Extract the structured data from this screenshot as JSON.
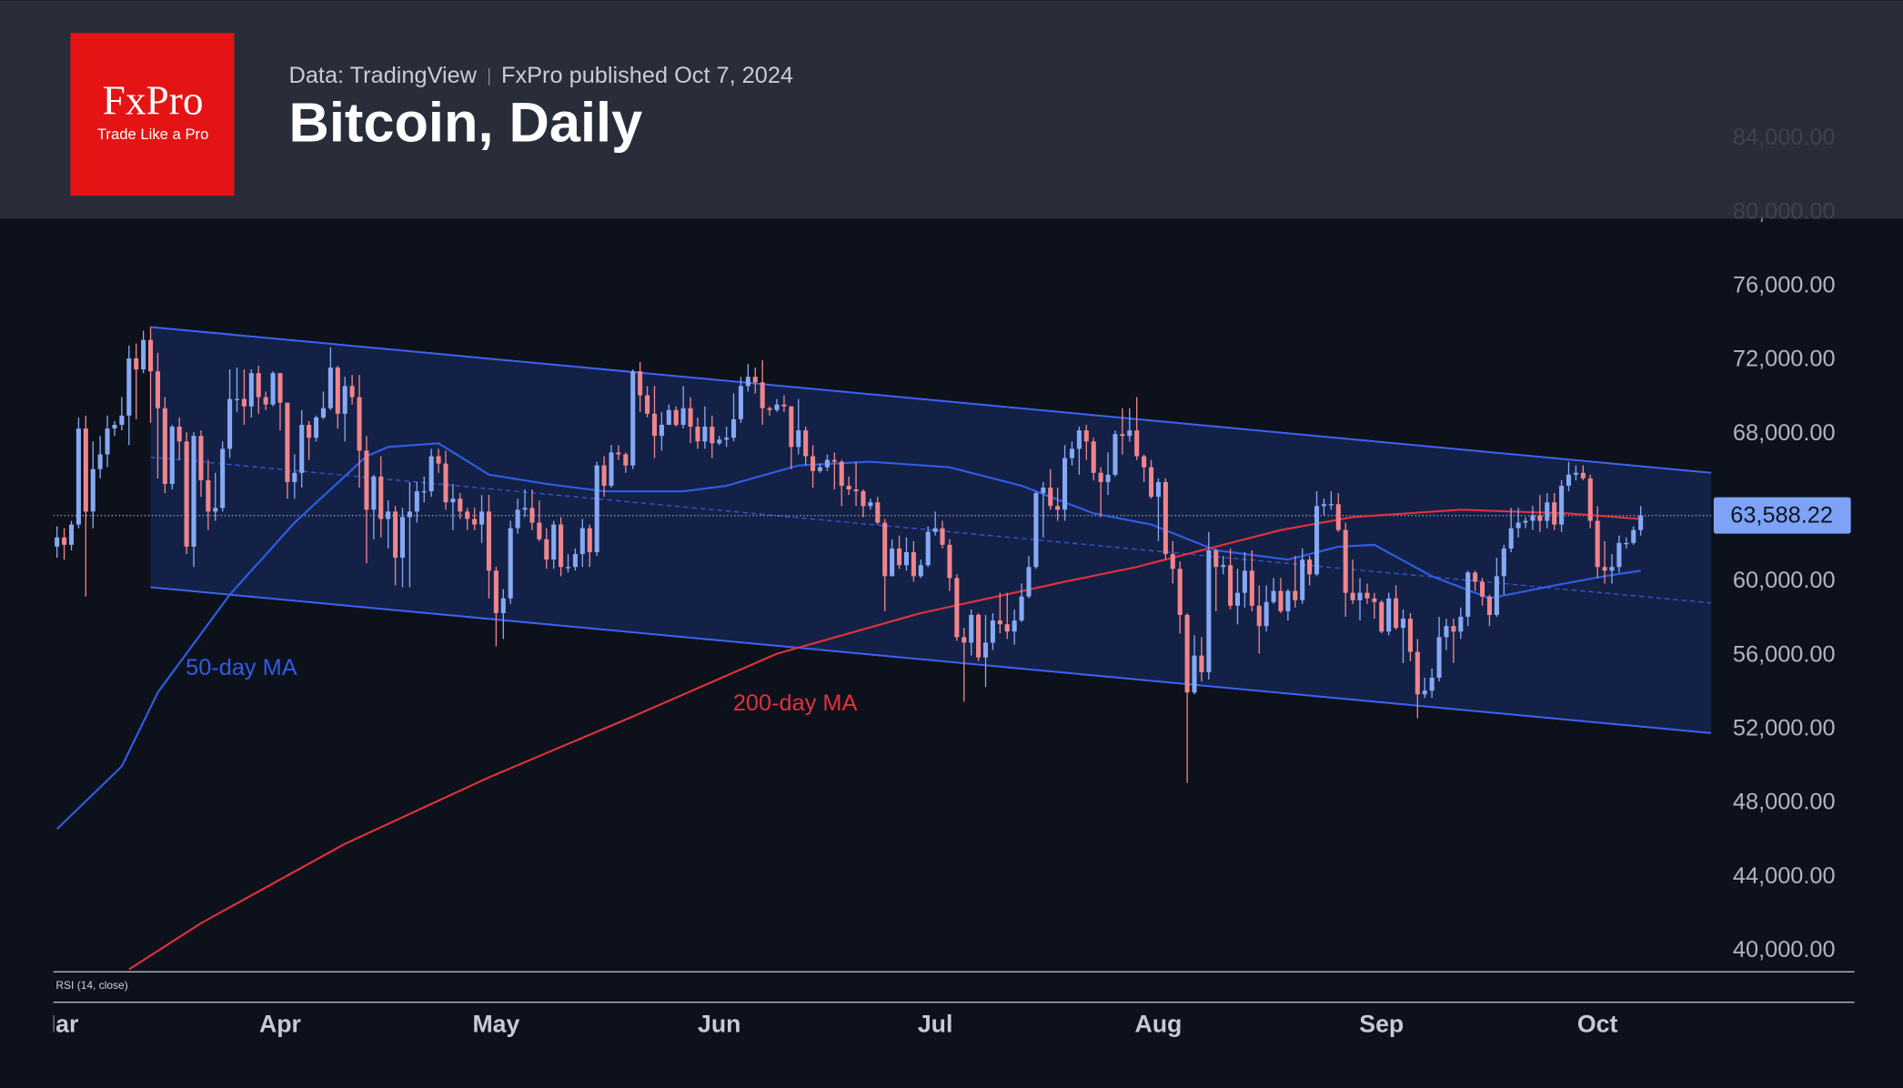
{
  "header": {
    "logo": "FxPro",
    "tagline": "Trade Like a Pro",
    "source": "Data: TradingView",
    "published": "FxPro published Oct 7, 2024"
  },
  "chart_data": {
    "type": "candlestick",
    "title": "Bitcoin, Daily",
    "open": [
      61900,
      62400,
      62000,
      63100,
      68300,
      63800,
      66100,
      66900,
      68300,
      68500,
      69000,
      72100,
      71500,
      73100,
      71400,
      69400,
      65300,
      68400,
      67600,
      61900,
      67900,
      65500,
      63800,
      64000,
      67200,
      69900,
      69900,
      69500,
      71300,
      70000,
      69600,
      71300,
      69700,
      65400,
      65900,
      68500,
      67800,
      68900,
      69400,
      71600,
      69100,
      70600,
      70000,
      67100,
      63900,
      65700,
      63400,
      63800,
      61300,
      63500,
      63800,
      64900,
      64900,
      66800,
      66400,
      64300,
      64500,
      63800,
      63400,
      63100,
      63800,
      60600,
      58300,
      59100,
      62900,
      63900,
      64000,
      63200,
      62300,
      61200,
      63100,
      60800,
      60800,
      61500,
      62900,
      61600,
      66300,
      65200,
      67000,
      66900,
      66300,
      71400,
      70100,
      69100,
      67900,
      68500,
      69300,
      68500,
      69400,
      68400,
      67600,
      68400,
      67500,
      67700,
      67800,
      68800,
      70600,
      71100,
      70800,
      69400,
      69300,
      69600,
      69500,
      67300,
      68200,
      66800,
      66000,
      66200,
      66600,
      66500,
      65200,
      65000,
      64900,
      64100,
      64300,
      63200,
      60300,
      61800,
      60900,
      61600,
      60300,
      60900,
      62700,
      62900,
      62000,
      60200,
      57000,
      56700,
      58200,
      55900,
      56700,
      57900,
      57700,
      57300,
      57900,
      59200,
      60800,
      64800,
      65100,
      64100,
      63900,
      66700,
      67200,
      68200,
      67600,
      65900,
      65400,
      65800,
      68000,
      67900,
      68200,
      66800,
      66200,
      64600,
      65400,
      61500,
      60700,
      58200,
      54000,
      56000,
      55100,
      61700,
      60800,
      60900,
      58700,
      59400,
      60600,
      58700,
      57600,
      58900,
      59500,
      58400,
      59500,
      59000,
      61200,
      60400,
      64100,
      64200,
      64200,
      62800,
      59400,
      59000,
      59400,
      59100,
      58900,
      57300,
      59100,
      57500,
      58000,
      56200,
      53900,
      54100,
      54800,
      57000,
      57600,
      57300,
      58100,
      60500,
      60000,
      59200,
      58200,
      60300,
      61800,
      62900,
      63200,
      63300,
      63600,
      63300,
      64300,
      63100,
      65200,
      65800,
      65900,
      65600,
      63300,
      60800,
      60600,
      60800,
      62100,
      62100,
      62800
    ],
    "high": [
      63000,
      62900,
      63300,
      68900,
      69000,
      67600,
      67900,
      69000,
      68700,
      70000,
      72800,
      72900,
      73600,
      73800,
      72400,
      70000,
      68500,
      68900,
      68100,
      68100,
      68200,
      66600,
      65900,
      67600,
      71500,
      71600,
      71500,
      71500,
      71700,
      70300,
      71400,
      71300,
      69700,
      66900,
      69300,
      68700,
      69000,
      70300,
      72700,
      71700,
      71100,
      71200,
      71200,
      67900,
      65800,
      66800,
      64400,
      64100,
      64000,
      65400,
      65400,
      65700,
      67200,
      67200,
      67100,
      65300,
      64800,
      64000,
      64000,
      64700,
      64700,
      60800,
      59600,
      63300,
      64500,
      65000,
      65000,
      64400,
      62900,
      63300,
      63500,
      61500,
      61800,
      63400,
      63100,
      66500,
      66800,
      67400,
      67400,
      67000,
      71500,
      71900,
      70600,
      70600,
      69200,
      69600,
      69500,
      70600,
      70000,
      68900,
      69500,
      69000,
      67900,
      68400,
      70200,
      71100,
      71800,
      71600,
      72000,
      69500,
      69900,
      70100,
      69500,
      69900,
      68400,
      67400,
      66400,
      66900,
      67000,
      66600,
      65700,
      66500,
      65000,
      64500,
      64600,
      63400,
      62300,
      62500,
      62400,
      62200,
      61200,
      63000,
      63800,
      63300,
      62300,
      60400,
      57500,
      58500,
      58300,
      58200,
      58300,
      59400,
      59400,
      58500,
      59900,
      61400,
      64900,
      65400,
      66100,
      65100,
      67400,
      67600,
      68400,
      68500,
      67800,
      66200,
      67000,
      68200,
      69400,
      69400,
      70000,
      66900,
      66600,
      65600,
      65600,
      62200,
      61100,
      58300,
      57100,
      57000,
      62700,
      61800,
      61400,
      61800,
      60700,
      61600,
      61700,
      59800,
      59800,
      60200,
      60200,
      59600,
      61400,
      61800,
      61400,
      64900,
      64500,
      64900,
      64800,
      63200,
      61200,
      60200,
      59900,
      59400,
      59000,
      59400,
      59800,
      58500,
      58300,
      56900,
      54800,
      55300,
      58100,
      58000,
      58000,
      58600,
      60600,
      60600,
      60200,
      59300,
      61300,
      62000,
      64000,
      64000,
      63500,
      64100,
      64700,
      64800,
      64800,
      65500,
      66500,
      66300,
      66300,
      65800,
      64100,
      62200,
      61500,
      62500,
      62400,
      63000,
      64100
    ],
    "low": [
      61300,
      61200,
      61700,
      62900,
      59200,
      62900,
      65600,
      66200,
      67900,
      68200,
      67400,
      68800,
      71300,
      68600,
      65600,
      64800,
      65000,
      66600,
      61500,
      60800,
      64600,
      62800,
      63300,
      63800,
      66700,
      69200,
      68500,
      68900,
      69100,
      69300,
      69500,
      68200,
      64500,
      64500,
      65100,
      66600,
      67600,
      68800,
      69300,
      68300,
      67600,
      69600,
      65100,
      61000,
      62300,
      62400,
      61800,
      59800,
      59700,
      59700,
      63200,
      64300,
      64600,
      65900,
      63900,
      62800,
      63400,
      62800,
      62800,
      62100,
      59100,
      56500,
      56900,
      58800,
      62600,
      63500,
      62800,
      62200,
      60700,
      60700,
      60300,
      60500,
      60600,
      60800,
      60800,
      61400,
      64600,
      65100,
      66600,
      65900,
      66100,
      69200,
      68900,
      66700,
      67100,
      68500,
      68400,
      68300,
      67500,
      67200,
      67200,
      66700,
      67400,
      67300,
      67600,
      68600,
      70300,
      70200,
      68500,
      69000,
      69200,
      69200,
      66100,
      66900,
      66300,
      65100,
      65900,
      66000,
      65000,
      64100,
      64700,
      64100,
      63500,
      63900,
      63100,
      58400,
      60300,
      60700,
      60600,
      60000,
      60200,
      60800,
      62500,
      61800,
      59500,
      56800,
      53500,
      56000,
      55700,
      54300,
      56300,
      57200,
      56900,
      56600,
      57800,
      59100,
      60700,
      62400,
      63900,
      63300,
      63300,
      66300,
      65800,
      66600,
      65500,
      63500,
      64700,
      65700,
      66900,
      67600,
      66600,
      65400,
      64500,
      62200,
      61200,
      59900,
      57200,
      49100,
      53900,
      54600,
      54700,
      58400,
      60400,
      58500,
      57700,
      58600,
      58400,
      56100,
      57300,
      58800,
      58300,
      57900,
      58600,
      58800,
      59800,
      60300,
      63600,
      63900,
      62700,
      58100,
      58800,
      57900,
      58800,
      58000,
      57200,
      57100,
      57400,
      55600,
      55700,
      52600,
      53700,
      53700,
      54600,
      56300,
      55600,
      56900,
      57600,
      59500,
      58700,
      57600,
      58100,
      59300,
      61600,
      62400,
      62900,
      62800,
      62700,
      62900,
      62800,
      62700,
      64900,
      65500,
      65500,
      62900,
      60200,
      59900,
      59900,
      60500,
      61800,
      62000,
      62500
    ],
    "close": [
      62400,
      62000,
      63100,
      68300,
      63800,
      66100,
      66900,
      68300,
      68500,
      69000,
      72100,
      71500,
      73100,
      71400,
      69400,
      65300,
      68400,
      67600,
      61900,
      67900,
      65500,
      63800,
      64000,
      67200,
      69900,
      69900,
      69500,
      71300,
      70000,
      69600,
      71300,
      69700,
      65400,
      65900,
      68500,
      67800,
      68900,
      69400,
      71600,
      69100,
      70600,
      70000,
      67100,
      63900,
      65700,
      63400,
      63800,
      61300,
      63500,
      63800,
      64900,
      64900,
      66800,
      66400,
      64300,
      64500,
      63800,
      63400,
      63100,
      63800,
      60600,
      58300,
      59100,
      62900,
      63900,
      64000,
      63200,
      62300,
      61200,
      63100,
      60800,
      60800,
      61500,
      62900,
      61600,
      66300,
      65200,
      67000,
      66900,
      66300,
      71400,
      70100,
      69100,
      67900,
      68500,
      69300,
      68500,
      69400,
      68400,
      67600,
      68400,
      67500,
      67700,
      67800,
      68800,
      70600,
      71100,
      70800,
      69400,
      69300,
      69600,
      69500,
      67300,
      68200,
      66800,
      66000,
      66200,
      66600,
      66500,
      65200,
      65000,
      64900,
      64100,
      64300,
      63200,
      60300,
      61800,
      60900,
      61600,
      60300,
      60900,
      62700,
      62900,
      62000,
      60200,
      57000,
      56700,
      58200,
      55900,
      56700,
      57900,
      57700,
      57300,
      57900,
      59200,
      60800,
      64800,
      65100,
      64100,
      63900,
      66700,
      67200,
      68200,
      67600,
      65900,
      65400,
      65800,
      68000,
      67900,
      68200,
      66800,
      66200,
      64600,
      65400,
      61500,
      60700,
      58200,
      54000,
      56000,
      55100,
      61700,
      60800,
      60900,
      58700,
      59400,
      60600,
      58700,
      57600,
      58900,
      59500,
      58400,
      59500,
      59000,
      61200,
      60400,
      64100,
      64200,
      64200,
      62800,
      59400,
      59000,
      59400,
      59100,
      58900,
      57300,
      59100,
      57500,
      58000,
      56200,
      53900,
      54100,
      54800,
      57000,
      57600,
      57300,
      58100,
      60500,
      60000,
      59200,
      58200,
      60300,
      61800,
      62900,
      63200,
      63300,
      63600,
      63300,
      64300,
      63100,
      65200,
      65800,
      65900,
      65600,
      63300,
      60800,
      60600,
      60800,
      62100,
      62100,
      62800,
      63588.22
    ],
    "up_color": "#86a9f4",
    "down_color": "#ef858b",
    "xlim": [
      -0.5,
      229.8
    ],
    "xticks": [
      {
        "value": 0,
        "label": "Mar"
      },
      {
        "value": 31,
        "label": "Apr"
      },
      {
        "value": 61,
        "label": "May"
      },
      {
        "value": 92,
        "label": "Jun"
      },
      {
        "value": 122,
        "label": "Jul"
      },
      {
        "value": 153,
        "label": "Aug"
      },
      {
        "value": 184,
        "label": "Sep"
      },
      {
        "value": 214,
        "label": "Oct"
      }
    ],
    "ylim": [
      38900,
      91500
    ],
    "yticks": [
      {
        "value": 40000,
        "label": "40,000.00"
      },
      {
        "value": 44000,
        "label": "44,000.00"
      },
      {
        "value": 48000,
        "label": "48,000.00"
      },
      {
        "value": 52000,
        "label": "52,000.00"
      },
      {
        "value": 56000,
        "label": "56,000.00"
      },
      {
        "value": 60000,
        "label": "60,000.00"
      },
      {
        "value": 64000,
        "label": "64,000.00"
      },
      {
        "value": 68000,
        "label": "68,000.00"
      },
      {
        "value": 72000,
        "label": "72,000.00"
      },
      {
        "value": 76000,
        "label": "76,000.00"
      },
      {
        "value": 80000,
        "label": "80,000.00"
      },
      {
        "value": 84000,
        "label": "84,000.00"
      }
    ],
    "last_price": {
      "value": 63588.22,
      "label": "63,588.22",
      "color": "#7ea2f6"
    },
    "moving_averages": [
      {
        "name": "50-day MA",
        "color": "#2f5de6",
        "x": [
          0,
          9,
          14,
          24,
          33,
          43,
          46,
          53,
          60,
          68,
          76,
          87,
          93,
          103,
          113,
          124,
          134,
          144,
          152,
          161,
          171,
          178,
          183,
          191,
          199,
          208,
          215,
          220
        ],
        "values": [
          46600,
          50000,
          54000,
          59300,
          63200,
          66800,
          67300,
          67500,
          65800,
          65300,
          64900,
          64900,
          65200,
          66300,
          66500,
          66200,
          65200,
          63700,
          63100,
          61700,
          61200,
          61900,
          62000,
          60300,
          59100,
          59800,
          60300,
          60600
        ]
      },
      {
        "name": "200-day MA",
        "color": "#e0323c",
        "x": [
          10,
          20,
          40,
          60,
          80,
          100,
          120,
          140,
          150,
          160,
          170,
          180,
          195,
          210,
          220
        ],
        "values": [
          39000,
          41500,
          45800,
          49400,
          52700,
          56100,
          58300,
          60000,
          60800,
          61800,
          62800,
          63500,
          63900,
          63700,
          63400
        ]
      }
    ],
    "channel": {
      "x": [
        13,
        229.8
      ],
      "upper": [
        73800,
        65900
      ],
      "middle": [
        66750,
        58850
      ],
      "lower": [
        59700,
        51800
      ],
      "color": "#3d63f5"
    },
    "indicator_label": "RSI (14, close)"
  }
}
